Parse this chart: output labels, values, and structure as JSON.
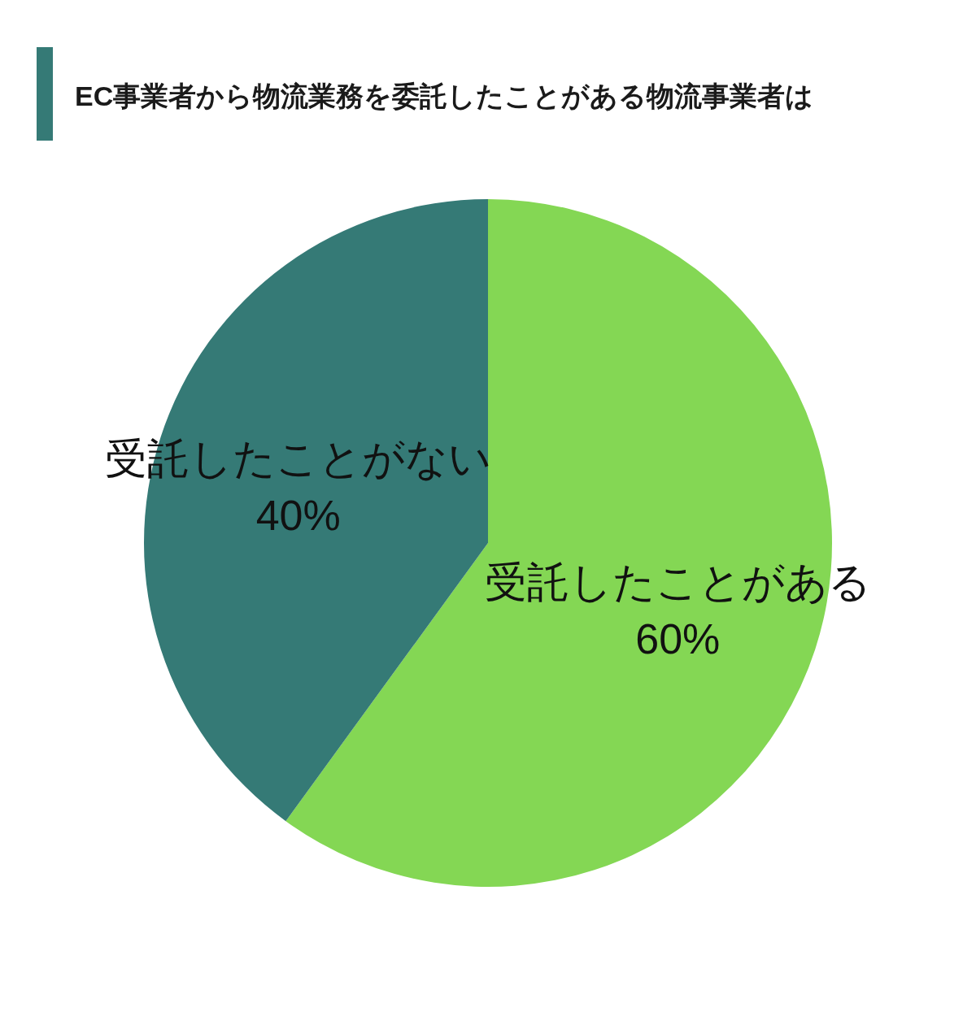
{
  "chart_data": {
    "type": "pie",
    "title": "EC事業者から物流業務を委託したことがある物流事業者は",
    "categories": [
      "受託したことがある",
      "受託したことがない"
    ],
    "values": [
      60,
      40
    ],
    "colors": [
      "#84d754",
      "#357a76"
    ],
    "value_labels": [
      "60%",
      "40%"
    ],
    "legend": false
  }
}
